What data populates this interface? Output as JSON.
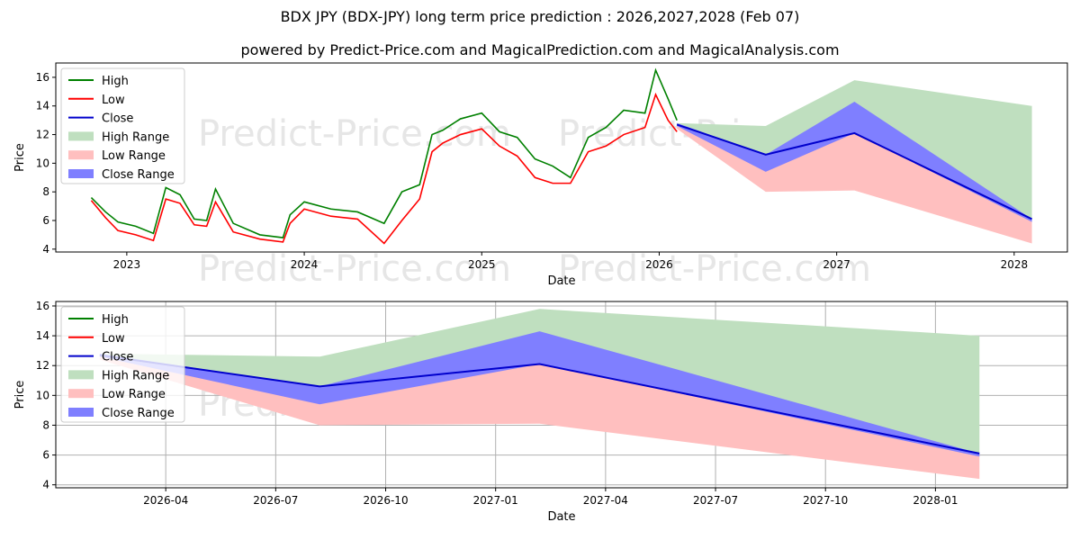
{
  "title": "BDX JPY (BDX-JPY) long term price prediction : 2026,2027,2028 (Feb 07)",
  "subtitle": "powered by Predict-Price.com and MagicalPrediction.com and MagicalAnalysis.com",
  "watermark": "Predict-Price.com",
  "colors": {
    "high": "#008000",
    "low": "#ff0000",
    "close": "#0000cc",
    "high_range": "#bfdfbf",
    "low_range": "#ffbfbf",
    "close_range": "#7f7fff"
  },
  "chart_data": [
    {
      "type": "line",
      "title": "",
      "xlabel": "Date",
      "ylabel": "Price",
      "xlim": [
        2022.6,
        2028.3
      ],
      "ylim": [
        3.8,
        17.0
      ],
      "xticks": [
        2023,
        2024,
        2025,
        2026,
        2027,
        2028
      ],
      "xtick_labels": [
        "2023",
        "2024",
        "2025",
        "2026",
        "2027",
        "2028"
      ],
      "yticks": [
        4,
        6,
        8,
        10,
        12,
        14,
        16
      ],
      "legend": [
        "High",
        "Low",
        "Close",
        "High Range",
        "Low Range",
        "Close Range"
      ],
      "legend_position": "top-left",
      "grid": false,
      "history": {
        "x": [
          2022.8,
          2022.88,
          2022.95,
          2023.05,
          2023.15,
          2023.22,
          2023.3,
          2023.38,
          2023.45,
          2023.5,
          2023.6,
          2023.75,
          2023.88,
          2023.92,
          2024.0,
          2024.15,
          2024.3,
          2024.45,
          2024.55,
          2024.65,
          2024.72,
          2024.78,
          2024.88,
          2025.0,
          2025.1,
          2025.2,
          2025.3,
          2025.4,
          2025.5,
          2025.6,
          2025.7,
          2025.8,
          2025.92,
          2025.98,
          2026.05,
          2026.1
        ],
        "high": [
          7.6,
          6.6,
          5.9,
          5.6,
          5.1,
          8.3,
          7.8,
          6.1,
          6.0,
          8.2,
          5.8,
          5.0,
          4.8,
          6.4,
          7.3,
          6.8,
          6.6,
          5.8,
          8.0,
          8.5,
          12.0,
          12.3,
          13.1,
          13.5,
          12.2,
          11.8,
          10.3,
          9.8,
          9.0,
          11.8,
          12.5,
          13.7,
          13.5,
          16.5,
          14.5,
          13.0
        ],
        "low": [
          7.4,
          6.2,
          5.3,
          5.0,
          4.6,
          7.5,
          7.2,
          5.7,
          5.6,
          7.3,
          5.2,
          4.7,
          4.5,
          5.8,
          6.8,
          6.3,
          6.1,
          4.4,
          6.0,
          7.5,
          10.8,
          11.4,
          12.0,
          12.4,
          11.2,
          10.5,
          9.0,
          8.6,
          8.6,
          10.8,
          11.2,
          12.0,
          12.5,
          14.8,
          13.0,
          12.2
        ]
      },
      "forecast": {
        "x": [
          2026.1,
          2026.6,
          2027.1,
          2028.1
        ],
        "high_range_upper": [
          12.8,
          12.6,
          15.8,
          14.0
        ],
        "low_range_lower": [
          12.4,
          8.0,
          8.1,
          4.4
        ],
        "close_range_upper": [
          12.8,
          10.6,
          14.3,
          6.1
        ],
        "close_range_lower": [
          12.6,
          9.4,
          12.1,
          5.9
        ],
        "close": [
          12.7,
          10.6,
          12.1,
          6.1
        ]
      }
    },
    {
      "type": "line",
      "title": "",
      "xlabel": "Date",
      "ylabel": "Price",
      "xlim": [
        2026.0,
        2028.3
      ],
      "ylim": [
        3.8,
        16.3
      ],
      "xticks": [
        2026.25,
        2026.5,
        2026.75,
        2027.0,
        2027.25,
        2027.5,
        2027.75,
        2028.0
      ],
      "xtick_labels": [
        "2026-04",
        "2026-07",
        "2026-10",
        "2027-01",
        "2027-04",
        "2027-07",
        "2027-10",
        "2028-01"
      ],
      "yticks": [
        4,
        6,
        8,
        10,
        12,
        14,
        16
      ],
      "legend": [
        "High",
        "Low",
        "Close",
        "High Range",
        "Low Range",
        "Close Range"
      ],
      "legend_position": "top-left",
      "grid": true,
      "forecast": {
        "x": [
          2026.1,
          2026.6,
          2027.1,
          2028.1
        ],
        "high_range_upper": [
          12.8,
          12.6,
          15.8,
          14.0
        ],
        "low_range_lower": [
          12.4,
          8.0,
          8.1,
          4.4
        ],
        "close_range_upper": [
          12.8,
          10.6,
          14.3,
          6.1
        ],
        "close_range_lower": [
          12.6,
          9.4,
          12.1,
          5.9
        ],
        "close": [
          12.7,
          10.6,
          12.1,
          6.1
        ]
      }
    }
  ]
}
